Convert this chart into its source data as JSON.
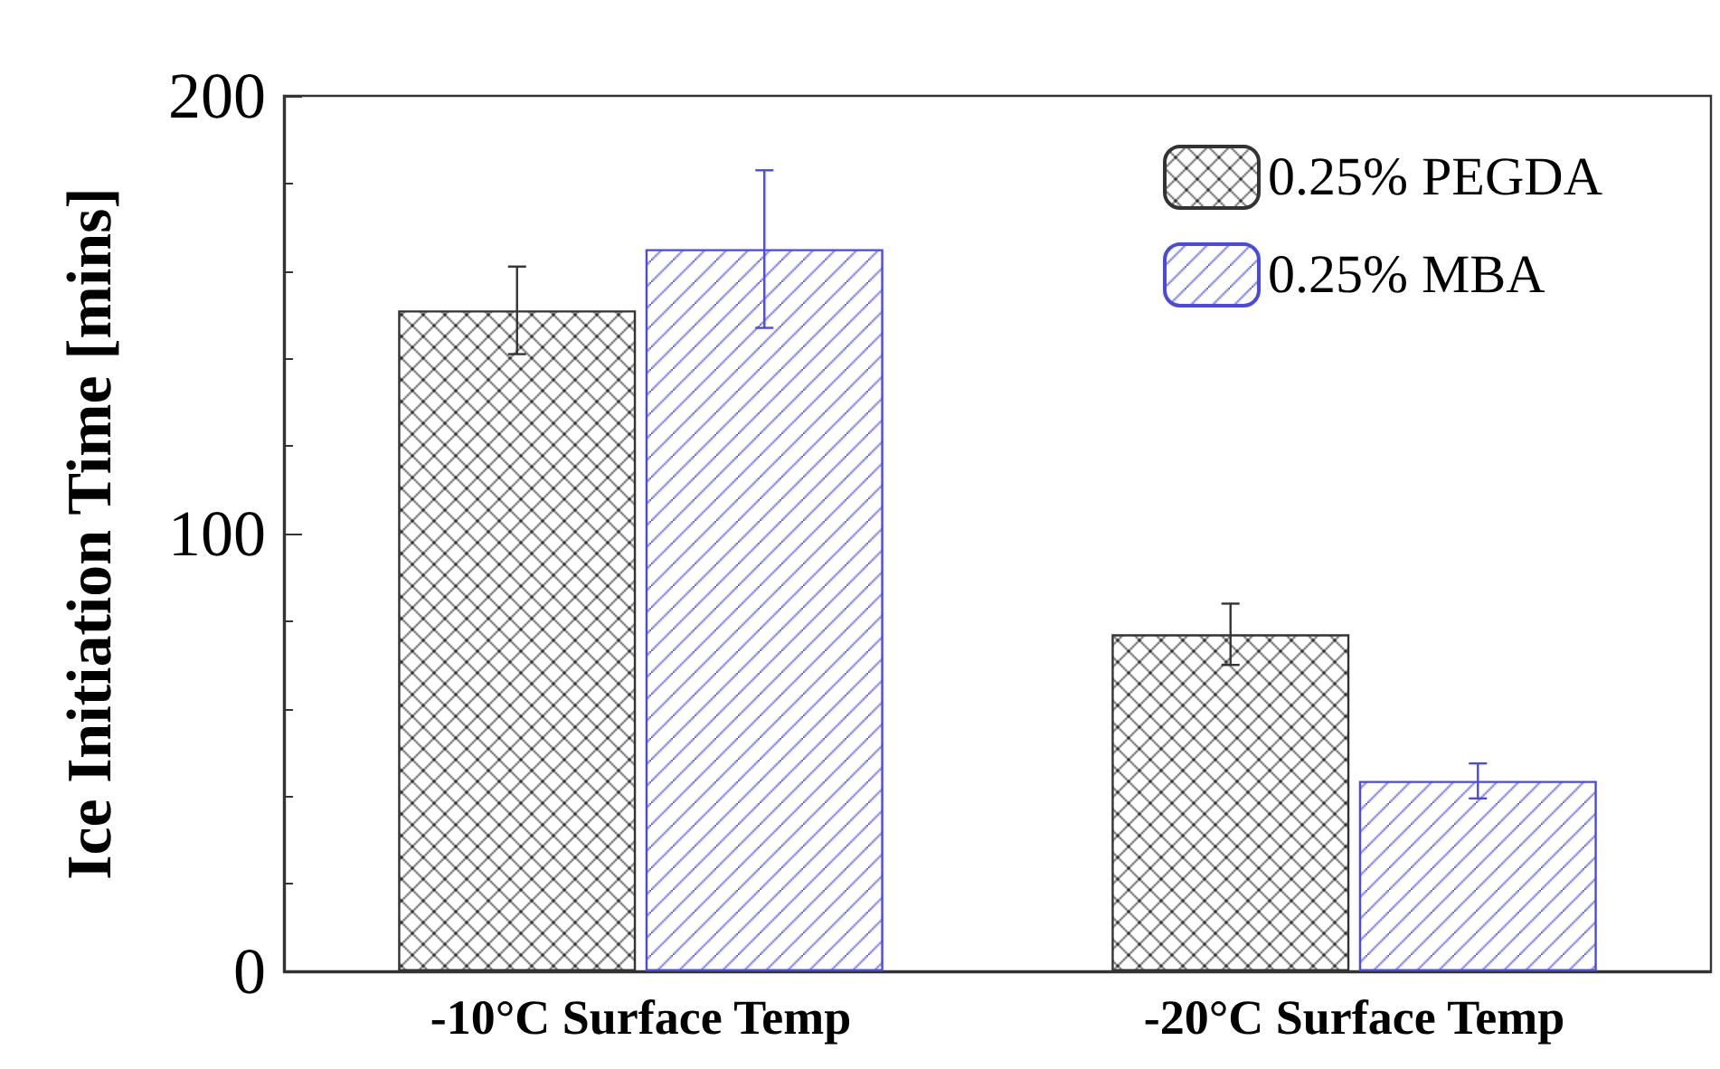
{
  "chart_data": {
    "type": "bar",
    "ylabel": "Ice Initiation Time [mins]",
    "categories": [
      "-10°C Surface Temp",
      "-20°C Surface Temp"
    ],
    "series": [
      {
        "name": "0.25% PEGDA",
        "color": "#333333",
        "values": [
          151,
          77
        ],
        "errors": [
          10,
          7
        ]
      },
      {
        "name": "0.25% MBA",
        "color": "#4a4ae0",
        "values": [
          165,
          43.5
        ],
        "errors": [
          18,
          4
        ]
      }
    ],
    "ylim": [
      0,
      200
    ],
    "yticks": [
      0,
      {
        "value": 20,
        "label": null
      },
      {
        "value": 40,
        "label": null
      },
      {
        "value": 60,
        "label": null
      },
      {
        "value": 80,
        "label": null
      },
      100,
      {
        "value": 120,
        "label": null
      },
      {
        "value": 140,
        "label": null
      },
      {
        "value": 160,
        "label": null
      },
      {
        "value": 180,
        "label": null
      },
      200
    ],
    "grid": false,
    "legend": "top right"
  }
}
